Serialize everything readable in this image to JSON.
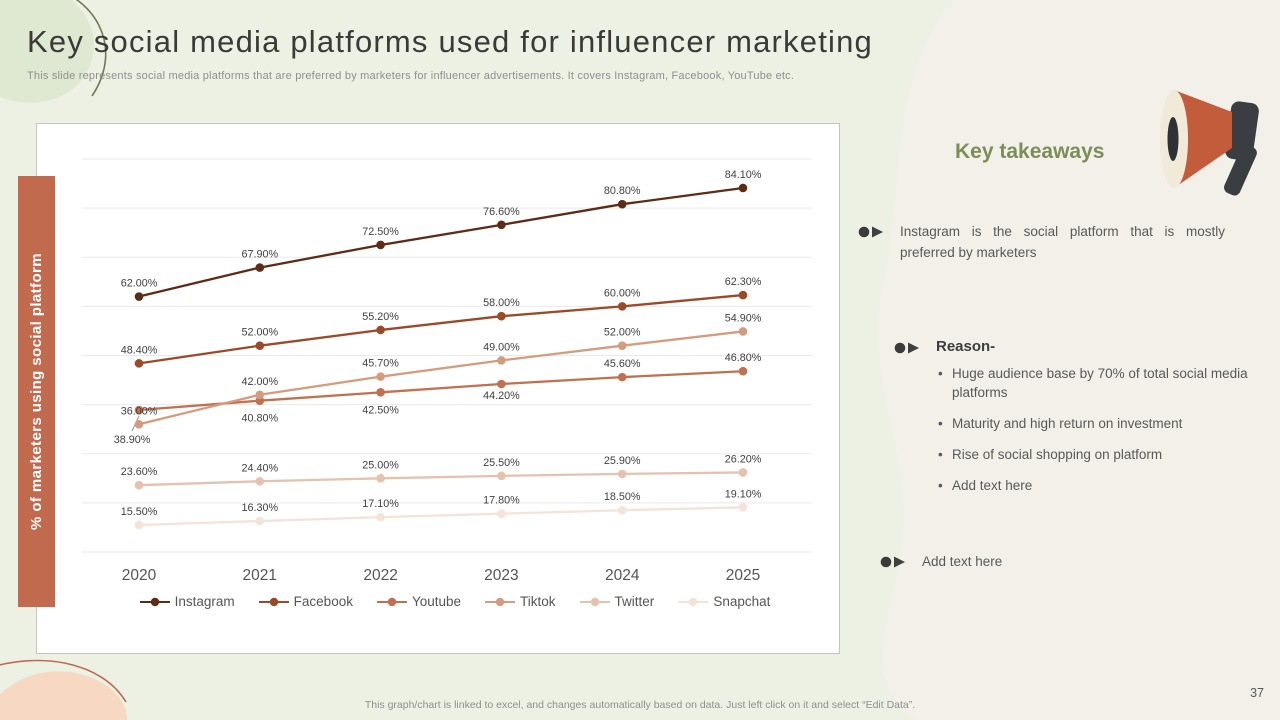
{
  "header": {
    "title": "Key social media platforms used for influencer marketing",
    "subtitle": "This slide represents social media platforms that are preferred by marketers for influencer advertisements. It covers Instagram, Facebook, YouTube etc."
  },
  "chart_data": {
    "type": "line",
    "x": [
      "2020",
      "2021",
      "2022",
      "2023",
      "2024",
      "2025"
    ],
    "series": [
      {
        "name": "Instagram",
        "color": "#5e2b16",
        "values": [
          62.0,
          67.9,
          72.5,
          76.6,
          80.8,
          84.1
        ]
      },
      {
        "name": "Facebook",
        "color": "#9a4a28",
        "values": [
          48.4,
          52.0,
          55.2,
          58.0,
          60.0,
          62.3
        ]
      },
      {
        "name": "Youtube",
        "color": "#c1714f",
        "values": [
          38.9,
          40.8,
          42.5,
          44.2,
          45.6,
          46.8
        ]
      },
      {
        "name": "Tiktok",
        "color": "#d49c7e",
        "values": [
          36.0,
          42.0,
          45.7,
          49.0,
          52.0,
          54.9
        ]
      },
      {
        "name": "Twitter",
        "color": "#e5c2ae",
        "values": [
          23.6,
          24.4,
          25.0,
          25.5,
          25.9,
          26.2
        ]
      },
      {
        "name": "Snapchat",
        "color": "#f3e3d9",
        "values": [
          15.5,
          16.3,
          17.1,
          17.8,
          18.5,
          19.1
        ]
      }
    ],
    "label_format": "percent_2dp",
    "ylim": [
      10,
      90
    ],
    "grid": true,
    "legend_position": "bottom",
    "title": "",
    "xlabel": "",
    "ylabel": "% of marketers  using social platform"
  },
  "takeaways": {
    "title": "Key takeaways",
    "bullet1": "Instagram is the social platform that is mostly preferred by marketers",
    "reason_label": "Reason-",
    "reason_items": [
      "Huge audience base by 70%  of total social media platforms",
      "Maturity and high return on investment",
      "Rise of social shopping on platform",
      "Add text here"
    ],
    "bullet3": "Add text here"
  },
  "footer": {
    "note": "This graph/chart is linked to excel,  and changes automatically based on data. Just left click on it and select “Edit Data”.",
    "page_number": "37"
  }
}
